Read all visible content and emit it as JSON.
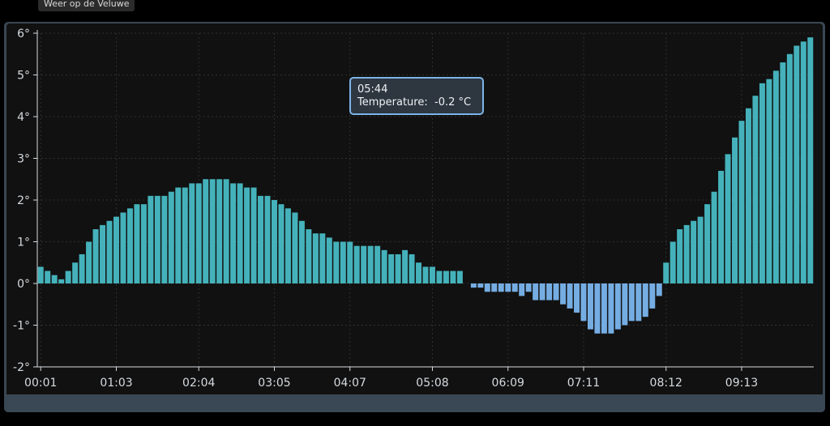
{
  "page": {
    "tab_title": "Weer op de Veluwe"
  },
  "tooltip": {
    "time": "05:44",
    "label": "Temperature:",
    "value": "-0.2 °C"
  },
  "colors": {
    "positive": "#45b2bb",
    "negative": "#75ade3",
    "axis": "#d6dbe0",
    "grid": "#2f2f2f",
    "background": "#111111"
  },
  "chart_data": {
    "type": "bar",
    "xlabel": "",
    "ylabel": "",
    "ylim": [
      -2,
      6
    ],
    "y_ticks": [
      -2,
      -1,
      0,
      1,
      2,
      3,
      4,
      5,
      6
    ],
    "y_tick_suffix": "°",
    "x_tick_labels": [
      "00:01",
      "01:03",
      "02:04",
      "03:05",
      "04:07",
      "05:08",
      "06:09",
      "07:11",
      "08:12",
      "09:13"
    ],
    "grid": true,
    "unit": "°C",
    "x_start": "00:01",
    "x_end": "09:30",
    "values": [
      0.4,
      0.3,
      0.2,
      0.1,
      0.3,
      0.5,
      0.7,
      1.0,
      1.3,
      1.4,
      1.5,
      1.6,
      1.7,
      1.8,
      1.9,
      1.9,
      2.1,
      2.1,
      2.1,
      2.2,
      2.3,
      2.3,
      2.4,
      2.4,
      2.5,
      2.5,
      2.5,
      2.5,
      2.4,
      2.4,
      2.3,
      2.3,
      2.1,
      2.1,
      2.0,
      1.9,
      1.8,
      1.7,
      1.5,
      1.3,
      1.2,
      1.2,
      1.1,
      1.0,
      1.0,
      1.0,
      0.9,
      0.9,
      0.9,
      0.9,
      0.8,
      0.7,
      0.7,
      0.8,
      0.7,
      0.5,
      0.4,
      0.4,
      0.3,
      0.3,
      0.3,
      0.3,
      null,
      -0.1,
      -0.1,
      -0.2,
      -0.2,
      -0.2,
      -0.2,
      -0.2,
      -0.3,
      -0.2,
      -0.4,
      -0.4,
      -0.4,
      -0.4,
      -0.5,
      -0.6,
      -0.7,
      -0.9,
      -1.1,
      -1.2,
      -1.2,
      -1.2,
      -1.1,
      -1.0,
      -0.9,
      -0.9,
      -0.8,
      -0.6,
      -0.3,
      0.5,
      1.0,
      1.3,
      1.4,
      1.5,
      1.6,
      1.9,
      2.2,
      2.7,
      3.1,
      3.5,
      3.9,
      4.2,
      4.5,
      4.8,
      4.9,
      5.1,
      5.3,
      5.5,
      5.7,
      5.8,
      5.9
    ]
  }
}
